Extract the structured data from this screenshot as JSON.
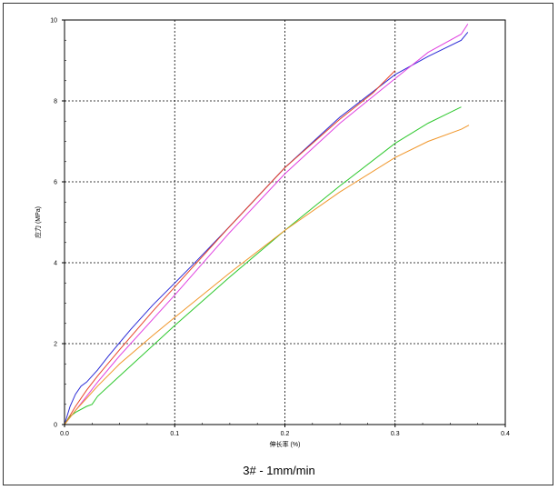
{
  "chart_data": {
    "type": "line",
    "title": "",
    "caption": "3# - 1mm/min",
    "xlabel": "伸长率 (%)",
    "ylabel": "应力 (MPa)",
    "xlim": [
      0,
      0.4
    ],
    "ylim": [
      0,
      10
    ],
    "xticks": [
      0,
      0.1,
      0.2,
      0.3,
      0.4
    ],
    "xtick_labels": [
      "0.0",
      "0.1",
      "0.2",
      "0.3",
      "0.4"
    ],
    "yticks": [
      0,
      2,
      4,
      6,
      8,
      10
    ],
    "ytick_labels": [
      "0",
      "2",
      "4",
      "6",
      "8",
      "10"
    ],
    "grid": true,
    "legend": "none",
    "series": [
      {
        "color": "#2b2bd6",
        "x": [
          0,
          0.005,
          0.01,
          0.015,
          0.02,
          0.03,
          0.04,
          0.06,
          0.08,
          0.1,
          0.12,
          0.15,
          0.2,
          0.25,
          0.3,
          0.33,
          0.36,
          0.366
        ],
        "y": [
          0,
          0.45,
          0.75,
          0.95,
          1.05,
          1.35,
          1.7,
          2.35,
          2.95,
          3.5,
          4.05,
          4.9,
          6.35,
          7.6,
          8.65,
          9.1,
          9.5,
          9.7
        ]
      },
      {
        "color": "#e040e0",
        "x": [
          0,
          0.01,
          0.02,
          0.03,
          0.05,
          0.08,
          0.1,
          0.15,
          0.2,
          0.25,
          0.3,
          0.33,
          0.36,
          0.366
        ],
        "y": [
          0,
          0.35,
          0.7,
          1.05,
          1.7,
          2.6,
          3.2,
          4.75,
          6.2,
          7.45,
          8.55,
          9.2,
          9.65,
          9.9
        ]
      },
      {
        "color": "#e8452a",
        "x": [
          0,
          0.01,
          0.02,
          0.03,
          0.05,
          0.08,
          0.1,
          0.15,
          0.2,
          0.25,
          0.28,
          0.3
        ],
        "y": [
          0,
          0.45,
          0.85,
          1.2,
          1.85,
          2.8,
          3.4,
          4.9,
          6.35,
          7.55,
          8.2,
          8.75
        ]
      },
      {
        "color": "#2ec82e",
        "x": [
          0,
          0.005,
          0.01,
          0.02,
          0.025,
          0.03,
          0.04,
          0.05,
          0.07,
          0.1,
          0.15,
          0.2,
          0.25,
          0.3,
          0.33,
          0.36
        ],
        "y": [
          0,
          0.2,
          0.3,
          0.45,
          0.5,
          0.7,
          0.95,
          1.2,
          1.7,
          2.45,
          3.65,
          4.8,
          5.9,
          6.95,
          7.45,
          7.85
        ]
      },
      {
        "color": "#f0962a",
        "x": [
          0,
          0.01,
          0.02,
          0.03,
          0.05,
          0.08,
          0.1,
          0.15,
          0.2,
          0.25,
          0.3,
          0.33,
          0.36,
          0.367
        ],
        "y": [
          0,
          0.35,
          0.65,
          0.95,
          1.5,
          2.2,
          2.65,
          3.75,
          4.8,
          5.75,
          6.6,
          7.0,
          7.3,
          7.4
        ]
      }
    ]
  }
}
